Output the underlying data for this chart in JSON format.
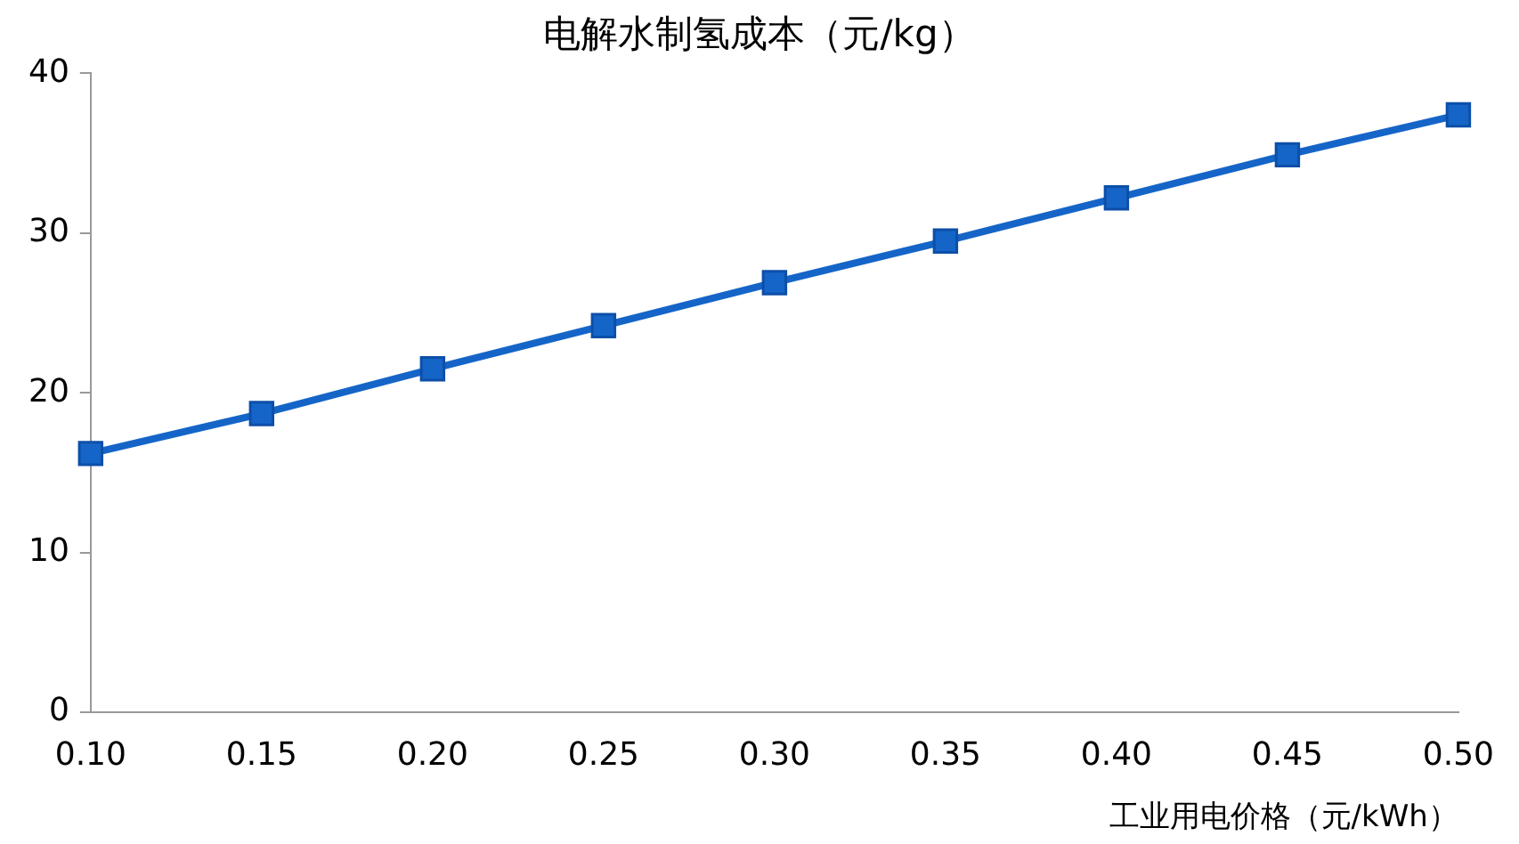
{
  "chart_data": {
    "type": "line",
    "title": "电解水制氢成本（元/kg）",
    "xlabel": "工业用电价格（元/kWh）",
    "categories": [
      "0.10",
      "0.15",
      "0.20",
      "0.25",
      "0.30",
      "0.35",
      "0.40",
      "0.45",
      "0.50"
    ],
    "series": [
      {
        "color": "#1565c8",
        "values": [
          16.2,
          18.7,
          21.5,
          24.2,
          26.9,
          29.5,
          32.2,
          34.9,
          37.4
        ]
      }
    ],
    "ylim": [
      0,
      40
    ],
    "yticks": [
      0,
      10,
      20,
      30,
      40
    ],
    "grid": false,
    "legend": false,
    "marker": "square",
    "line_style": "solid"
  }
}
